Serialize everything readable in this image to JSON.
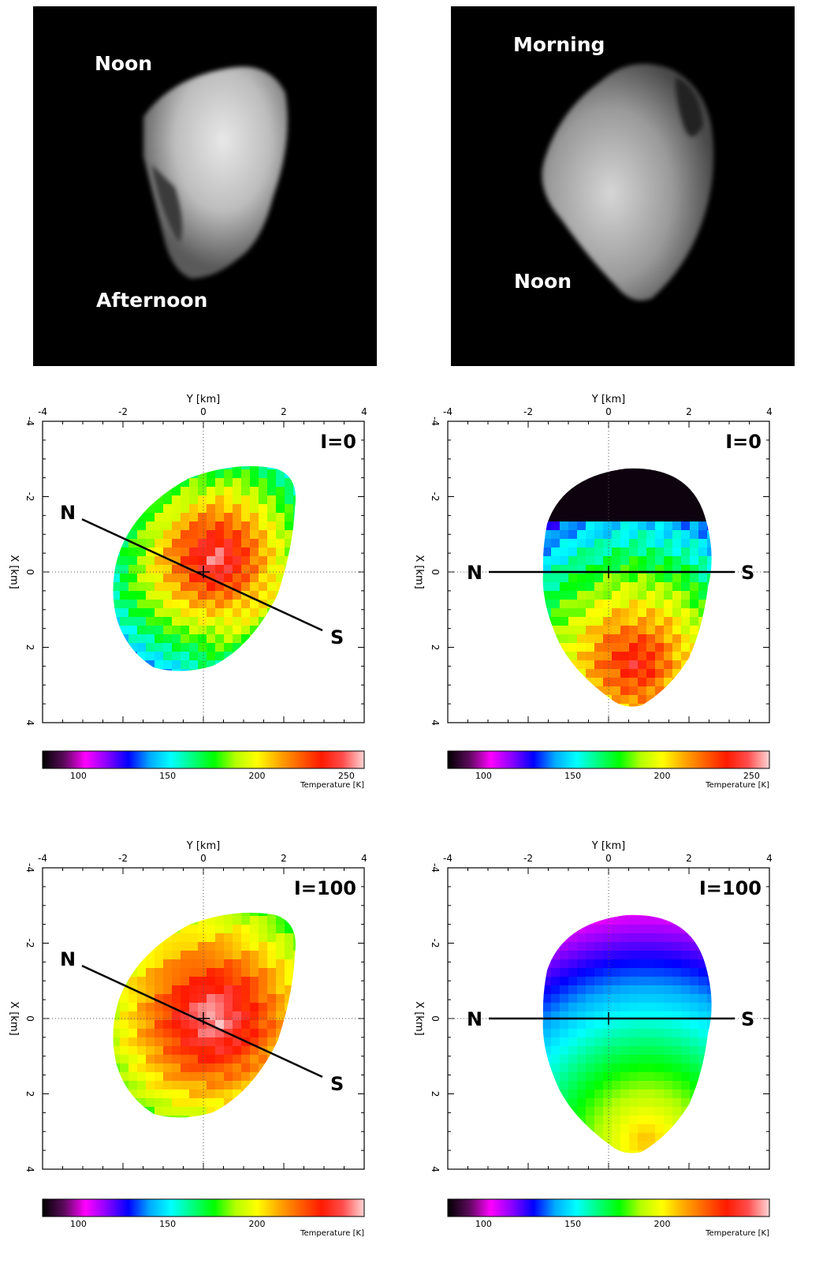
{
  "photos": [
    {
      "id": "left",
      "label_top": "Noon",
      "label_bottom": "Afternoon"
    },
    {
      "id": "right",
      "label_top": "Morning",
      "label_bottom": "Noon"
    }
  ],
  "axes": {
    "x_axis_label": "Y  [km]",
    "y_axis_label": "X  [km]",
    "ticks": [
      "-4",
      "-2",
      "0",
      "2",
      "4"
    ],
    "ylim": [
      -4,
      4
    ],
    "xlim": [
      -4,
      4
    ]
  },
  "panels": [
    {
      "id": "tl",
      "label": "I=0",
      "pole_n": "N",
      "pole_s": "S",
      "view": "oblique",
      "colorbar_ticks": [
        "100",
        "150",
        "200",
        "250"
      ],
      "colorbar_title": "Temperature [K]"
    },
    {
      "id": "tr",
      "label": "I=0",
      "pole_n": "N",
      "pole_s": "S",
      "view": "equatorial",
      "colorbar_ticks": [
        "100",
        "150",
        "200",
        "250"
      ],
      "colorbar_title": "Temperature [K]"
    },
    {
      "id": "bl",
      "label": "I=100",
      "pole_n": "N",
      "pole_s": "S",
      "view": "oblique",
      "colorbar_ticks": [
        "100",
        "150",
        "200"
      ],
      "colorbar_title": "Temperature [K]"
    },
    {
      "id": "br",
      "label": "I=100",
      "pole_n": "N",
      "pole_s": "S",
      "view": "equatorial",
      "colorbar_ticks": [
        "100",
        "150",
        "200"
      ],
      "colorbar_title": "Temperature [K]"
    }
  ],
  "colorbar_colors": [
    "#000000",
    "#5a0a5a",
    "#ff00ff",
    "#8a00ff",
    "#0000ff",
    "#00aaff",
    "#00ffff",
    "#00ff7f",
    "#00ff00",
    "#b4ff00",
    "#ffff00",
    "#ffaa00",
    "#ff6000",
    "#ff1a00",
    "#ff4d4d",
    "#ffd5d5"
  ]
}
